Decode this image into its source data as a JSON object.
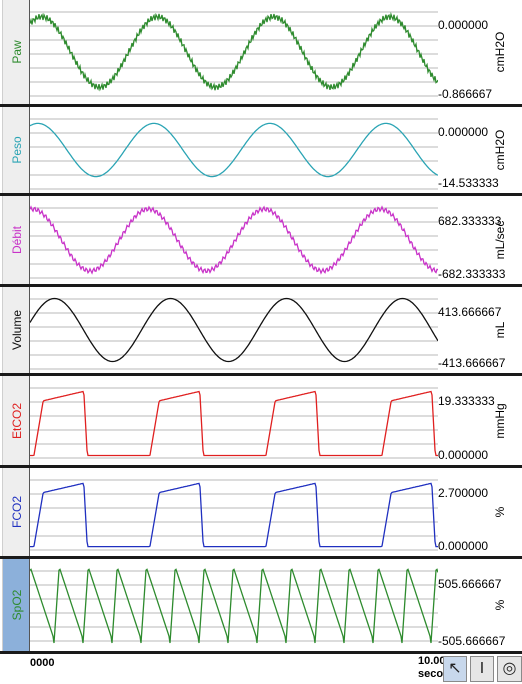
{
  "channels": [
    {
      "id": "paw",
      "label": "Paw",
      "color": "#2e8b2e",
      "max": "0.000000",
      "min": "-0.866667",
      "unit": "cmH2O",
      "selected": false
    },
    {
      "id": "peso",
      "label": "Peso",
      "color": "#2aa4b4",
      "max": "0.000000",
      "min": "-14.533333",
      "unit": "cmH2O",
      "selected": false
    },
    {
      "id": "debit",
      "label": "Débit",
      "color": "#c832c8",
      "max": "682.333333",
      "min": "-682.333333",
      "unit": "mL/sec",
      "selected": false
    },
    {
      "id": "volume",
      "label": "Volume",
      "color": "#111111",
      "max": "413.666667",
      "min": "-413.666667",
      "unit": "mL",
      "selected": false
    },
    {
      "id": "etco2",
      "label": "EtCO2",
      "color": "#e02020",
      "max": "19.333333",
      "min": "0.000000",
      "unit": "mmHg",
      "selected": false
    },
    {
      "id": "fco2",
      "label": "FCO2",
      "color": "#2030c0",
      "max": "2.700000",
      "min": "0.000000",
      "unit": "%",
      "selected": false
    },
    {
      "id": "spo2",
      "label": "SpO2",
      "color": "#2e8b2e",
      "max": "505.666667",
      "min": "-505.666667",
      "unit": "%",
      "selected": true
    }
  ],
  "time_axis": {
    "start": "0000",
    "end": "10.00",
    "unit": "seco"
  },
  "tools": [
    {
      "name": "pointer-tool-icon",
      "glyph": "↖"
    },
    {
      "name": "text-cursor-tool-icon",
      "glyph": "I"
    },
    {
      "name": "zoom-tool-icon",
      "glyph": "◎"
    }
  ]
}
